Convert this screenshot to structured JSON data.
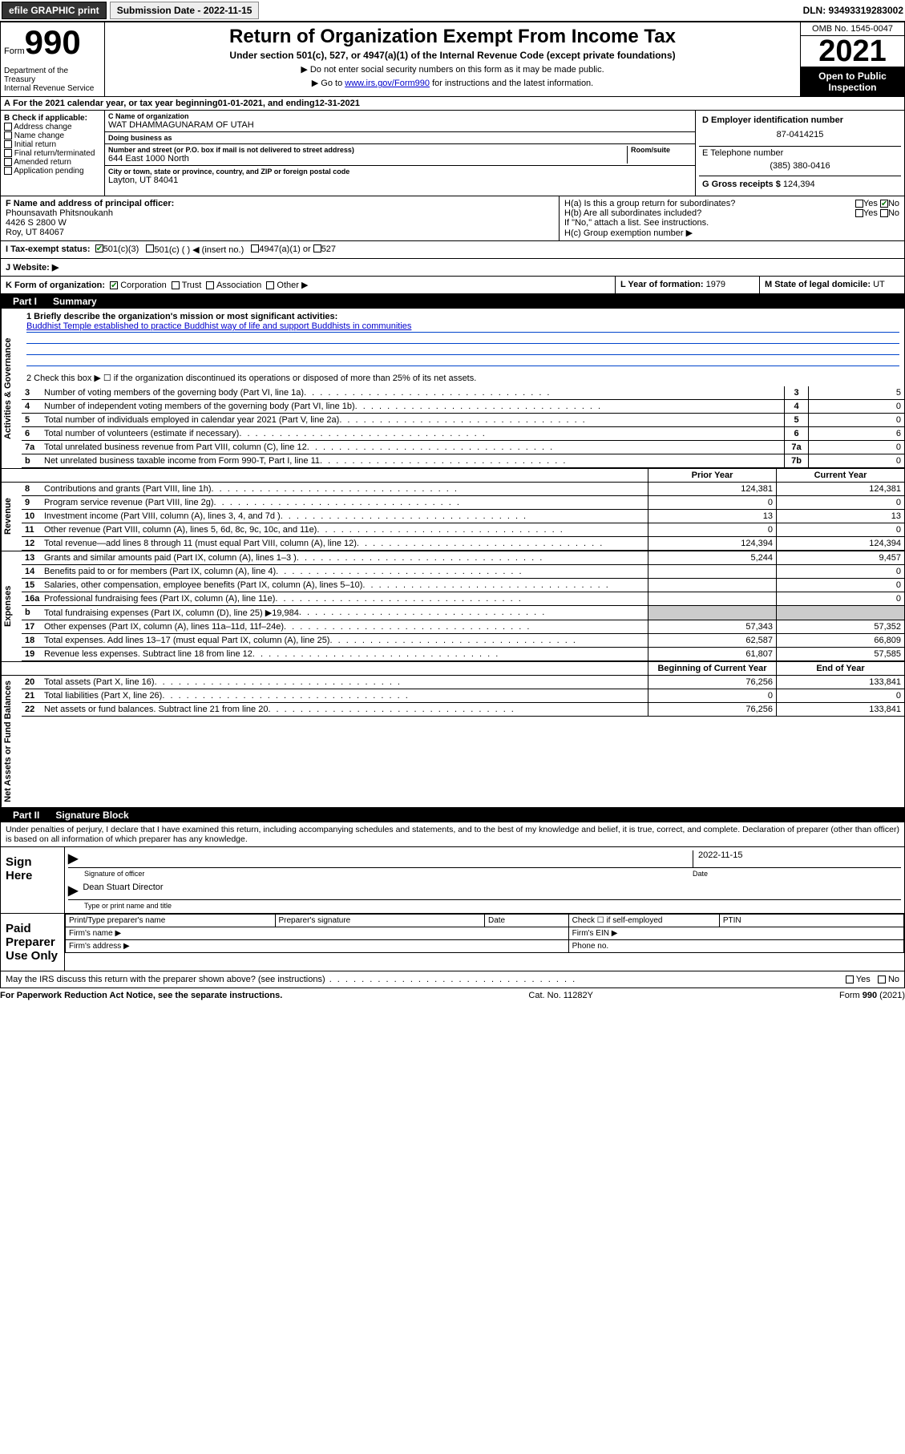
{
  "colors": {
    "link": "#0000cc",
    "rule": "#0044cc",
    "check": "#0a7a0a",
    "black": "#000000",
    "grey": "#cccccc",
    "white": "#ffffff"
  },
  "topbar": {
    "efile": "efile GRAPHIC print",
    "submission": "Submission Date - 2022-11-15",
    "dln": "DLN: 93493319283002"
  },
  "header": {
    "form_word": "Form",
    "form_number": "990",
    "title": "Return of Organization Exempt From Income Tax",
    "subtitle": "Under section 501(c), 527, or 4947(a)(1) of the Internal Revenue Code (except private foundations)",
    "note1": "▶ Do not enter social security numbers on this form as it may be made public.",
    "note2_pre": "▶ Go to ",
    "note2_link": "www.irs.gov/Form990",
    "note2_post": " for instructions and the latest information.",
    "dept": "Department of the Treasury",
    "irs": "Internal Revenue Service",
    "omb": "OMB No. 1545-0047",
    "year": "2021",
    "inspection": "Open to Public Inspection"
  },
  "section_a": {
    "label": "A",
    "text_pre": "For the 2021 calendar year, or tax year beginning ",
    "begin": "01-01-2021",
    "mid": " , and ending ",
    "end": "12-31-2021"
  },
  "section_b": {
    "label": "B Check if applicable:",
    "items": [
      "Address change",
      "Name change",
      "Initial return",
      "Final return/terminated",
      "Amended return",
      "Application pending"
    ]
  },
  "section_c": {
    "name_label": "C Name of organization",
    "name": "WAT DHAMMAGUNARAM OF UTAH",
    "dba_label": "Doing business as",
    "dba": "",
    "street_label": "Number and street (or P.O. box if mail is not delivered to street address)",
    "room_label": "Room/suite",
    "street": "644 East 1000 North",
    "city_label": "City or town, state or province, country, and ZIP or foreign postal code",
    "city": "Layton, UT  84041"
  },
  "section_d": {
    "ein_label": "D Employer identification number",
    "ein": "87-0414215",
    "phone_label": "E Telephone number",
    "phone": "(385) 380-0416",
    "gross_label": "G Gross receipts $",
    "gross": "124,394"
  },
  "section_f": {
    "label": "F Name and address of principal officer:",
    "name": "Phounsavath Phitsnoukanh",
    "addr1": "4426 S 2800 W",
    "addr2": "Roy, UT  84067"
  },
  "section_h": {
    "ha": "H(a)  Is this a group return for subordinates?",
    "hb": "H(b)  Are all subordinates included?",
    "hb_note": "If \"No,\" attach a list. See instructions.",
    "hc": "H(c)  Group exemption number ▶",
    "yes": "Yes",
    "no": "No"
  },
  "section_i": {
    "label": "I  Tax-exempt status:",
    "o501c3": "501(c)(3)",
    "o501c": "501(c) (   ) ◀ (insert no.)",
    "o4947": "4947(a)(1) or",
    "o527": "527"
  },
  "section_j": {
    "label": "J  Website: ▶"
  },
  "section_k": {
    "label": "K Form of organization:",
    "corp": "Corporation",
    "trust": "Trust",
    "assoc": "Association",
    "other": "Other ▶"
  },
  "section_l": {
    "label": "L Year of formation:",
    "val": "1979"
  },
  "section_m": {
    "label": "M State of legal domicile:",
    "val": "UT"
  },
  "part1": {
    "tab": "Part I",
    "title": "Summary",
    "line1_label": "1  Briefly describe the organization's mission or most significant activities:",
    "mission": "Buddhist Temple established to practice Buddhist way of life and support Buddhists in communities",
    "line2": "2  Check this box ▶ ☐ if the organization discontinued its operations or disposed of more than 25% of its net assets.",
    "vert_gov": "Activities & Governance",
    "vert_rev": "Revenue",
    "vert_exp": "Expenses",
    "vert_net": "Net Assets or Fund Balances",
    "governance": [
      {
        "n": "3",
        "d": "Number of voting members of the governing body (Part VI, line 1a)",
        "b": "3",
        "v": "5"
      },
      {
        "n": "4",
        "d": "Number of independent voting members of the governing body (Part VI, line 1b)",
        "b": "4",
        "v": "0"
      },
      {
        "n": "5",
        "d": "Total number of individuals employed in calendar year 2021 (Part V, line 2a)",
        "b": "5",
        "v": "0"
      },
      {
        "n": "6",
        "d": "Total number of volunteers (estimate if necessary)",
        "b": "6",
        "v": "6"
      },
      {
        "n": "7a",
        "d": "Total unrelated business revenue from Part VIII, column (C), line 12",
        "b": "7a",
        "v": "0"
      },
      {
        "n": "b",
        "d": "Net unrelated business taxable income from Form 990-T, Part I, line 11",
        "b": "7b",
        "v": "0"
      }
    ],
    "col_prior": "Prior Year",
    "col_current": "Current Year",
    "revenue": [
      {
        "n": "8",
        "d": "Contributions and grants (Part VIII, line 1h)",
        "p": "124,381",
        "c": "124,381"
      },
      {
        "n": "9",
        "d": "Program service revenue (Part VIII, line 2g)",
        "p": "0",
        "c": "0"
      },
      {
        "n": "10",
        "d": "Investment income (Part VIII, column (A), lines 3, 4, and 7d )",
        "p": "13",
        "c": "13"
      },
      {
        "n": "11",
        "d": "Other revenue (Part VIII, column (A), lines 5, 6d, 8c, 9c, 10c, and 11e)",
        "p": "0",
        "c": "0"
      },
      {
        "n": "12",
        "d": "Total revenue—add lines 8 through 11 (must equal Part VIII, column (A), line 12)",
        "p": "124,394",
        "c": "124,394"
      }
    ],
    "expenses": [
      {
        "n": "13",
        "d": "Grants and similar amounts paid (Part IX, column (A), lines 1–3 )",
        "p": "5,244",
        "c": "9,457"
      },
      {
        "n": "14",
        "d": "Benefits paid to or for members (Part IX, column (A), line 4)",
        "p": "",
        "c": "0"
      },
      {
        "n": "15",
        "d": "Salaries, other compensation, employee benefits (Part IX, column (A), lines 5–10)",
        "p": "",
        "c": "0"
      },
      {
        "n": "16a",
        "d": "Professional fundraising fees (Part IX, column (A), line 11e)",
        "p": "",
        "c": "0"
      },
      {
        "n": "b",
        "d": "Total fundraising expenses (Part IX, column (D), line 25) ▶19,984",
        "p": "GREY",
        "c": "GREY"
      },
      {
        "n": "17",
        "d": "Other expenses (Part IX, column (A), lines 11a–11d, 11f–24e)",
        "p": "57,343",
        "c": "57,352"
      },
      {
        "n": "18",
        "d": "Total expenses. Add lines 13–17 (must equal Part IX, column (A), line 25)",
        "p": "62,587",
        "c": "66,809"
      },
      {
        "n": "19",
        "d": "Revenue less expenses. Subtract line 18 from line 12",
        "p": "61,807",
        "c": "57,585"
      }
    ],
    "col_begin": "Beginning of Current Year",
    "col_end": "End of Year",
    "netassets": [
      {
        "n": "20",
        "d": "Total assets (Part X, line 16)",
        "p": "76,256",
        "c": "133,841"
      },
      {
        "n": "21",
        "d": "Total liabilities (Part X, line 26)",
        "p": "0",
        "c": "0"
      },
      {
        "n": "22",
        "d": "Net assets or fund balances. Subtract line 21 from line 20",
        "p": "76,256",
        "c": "133,841"
      }
    ]
  },
  "part2": {
    "tab": "Part II",
    "title": "Signature Block",
    "declaration": "Under penalties of perjury, I declare that I have examined this return, including accompanying schedules and statements, and to the best of my knowledge and belief, it is true, correct, and complete. Declaration of preparer (other than officer) is based on all information of which preparer has any knowledge.",
    "sign_here": "Sign Here",
    "sig_officer": "Signature of officer",
    "sig_date": "Date",
    "sig_date_val": "2022-11-15",
    "officer_name": "Dean Stuart  Director",
    "type_name": "Type or print name and title",
    "paid": "Paid Preparer Use Only",
    "prep_name": "Print/Type preparer's name",
    "prep_sig": "Preparer's signature",
    "date": "Date",
    "check_self": "Check ☐ if self-employed",
    "ptin": "PTIN",
    "firm_name": "Firm's name  ▶",
    "firm_ein": "Firm's EIN ▶",
    "firm_addr": "Firm's address ▶",
    "phone": "Phone no.",
    "may_discuss": "May the IRS discuss this return with the preparer shown above? (see instructions)",
    "yes": "Yes",
    "no": "No"
  },
  "footer": {
    "pra": "For Paperwork Reduction Act Notice, see the separate instructions.",
    "cat": "Cat. No. 11282Y",
    "form": "Form 990 (2021)"
  }
}
